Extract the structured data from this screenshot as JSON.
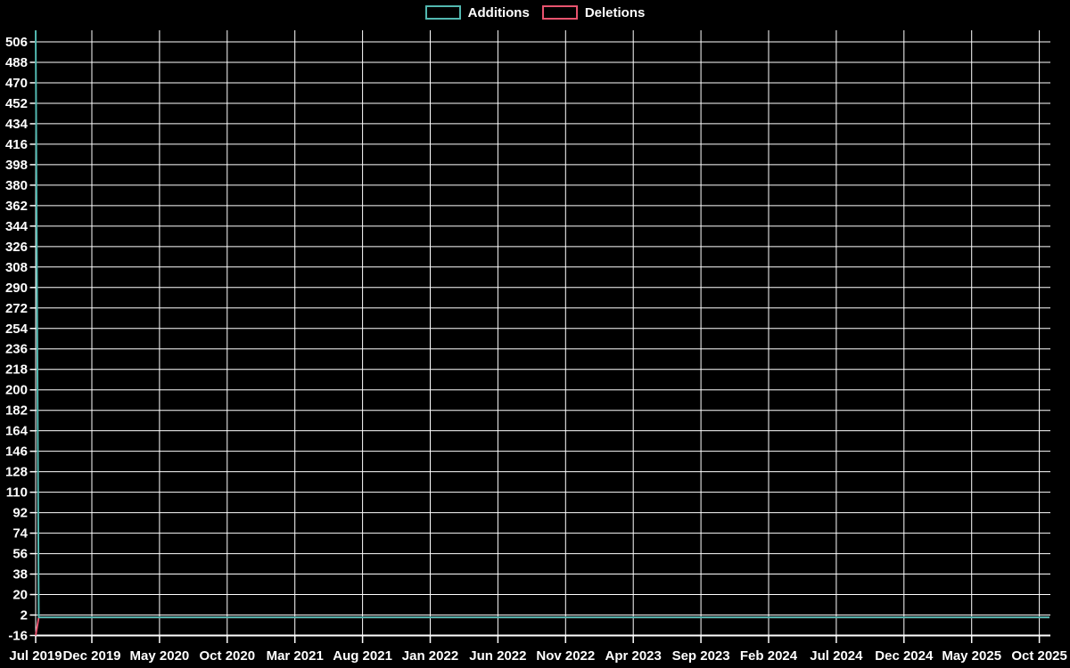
{
  "chart_data": {
    "type": "line",
    "title": "",
    "xlabel": "",
    "ylabel": "",
    "legend_position": "top-center",
    "grid": true,
    "colors": {
      "background": "#000000",
      "grid": "#ffffff",
      "text": "#ffffff",
      "additions": "#52b8b2",
      "deletions": "#e8536e"
    },
    "x_ticks": [
      "Jul 2019",
      "Dec 2019",
      "May 2020",
      "Oct 2020",
      "Mar 2021",
      "Aug 2021",
      "Jan 2022",
      "Jun 2022",
      "Nov 2022",
      "Apr 2023",
      "Sep 2023",
      "Feb 2024",
      "Jul 2024",
      "Dec 2024",
      "May 2025",
      "Oct 2025"
    ],
    "y_ticks": [
      506,
      488,
      470,
      452,
      434,
      416,
      398,
      380,
      362,
      344,
      326,
      308,
      290,
      272,
      254,
      236,
      218,
      200,
      182,
      164,
      146,
      128,
      110,
      92,
      74,
      56,
      38,
      20,
      2,
      -16
    ],
    "y_axis": {
      "min": -16,
      "max": 516,
      "tick_step": 18
    },
    "series": [
      {
        "name": "Additions",
        "color": "#52b8b0",
        "points": [
          {
            "week": 0,
            "value": 516
          },
          {
            "week": 1,
            "value": 0
          },
          {
            "week": 329,
            "value": 0
          }
        ]
      },
      {
        "name": "Deletions",
        "color": "#e8536e",
        "points": [
          {
            "week": 0,
            "value": -16
          },
          {
            "week": 1,
            "value": 0
          },
          {
            "week": 329,
            "value": 0
          }
        ]
      }
    ]
  }
}
